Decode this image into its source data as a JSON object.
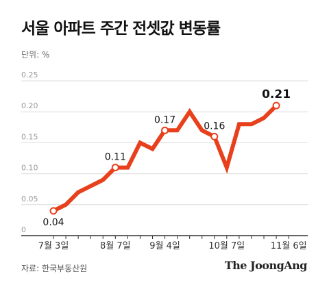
{
  "title": "서울 아파트 주간 전셋값 변동률",
  "unit_label": "단위: %",
  "source": "자료: 한국부동산원",
  "brand": "The JoongAng",
  "colors": {
    "line": "#e8401c",
    "grid": "#dcdcdc",
    "axis": "#333333",
    "text": "#333333",
    "tick": "#999999"
  },
  "chart_data": {
    "type": "line",
    "ylim": [
      0,
      0.25
    ],
    "y_ticks": [
      "0",
      "0.05",
      "0.10",
      "0.15",
      "0.20",
      "0.25"
    ],
    "y_tick_values": [
      0,
      0.05,
      0.1,
      0.15,
      0.2,
      0.25
    ],
    "x_tick_labels": [
      {
        "index": 0,
        "label": "7월 3일"
      },
      {
        "index": 5,
        "label": "8월 7일"
      },
      {
        "index": 9,
        "label": "9월 4일"
      },
      {
        "index": 14,
        "label": "10월 7일"
      },
      {
        "index": 19,
        "label": "11월 6일"
      }
    ],
    "values": [
      0.04,
      0.05,
      0.07,
      0.08,
      0.09,
      0.11,
      0.11,
      0.15,
      0.14,
      0.17,
      0.17,
      0.2,
      0.17,
      0.16,
      0.11,
      0.18,
      0.18,
      0.19,
      0.21
    ],
    "labeled_points": [
      {
        "index": 0,
        "label": "0.04",
        "pos": "below"
      },
      {
        "index": 5,
        "label": "0.11",
        "pos": "above"
      },
      {
        "index": 9,
        "label": "0.17",
        "pos": "above"
      },
      {
        "index": 13,
        "label": "0.16",
        "pos": "above"
      },
      {
        "index": 18,
        "label": "0.21",
        "pos": "above"
      }
    ],
    "grid": true
  }
}
